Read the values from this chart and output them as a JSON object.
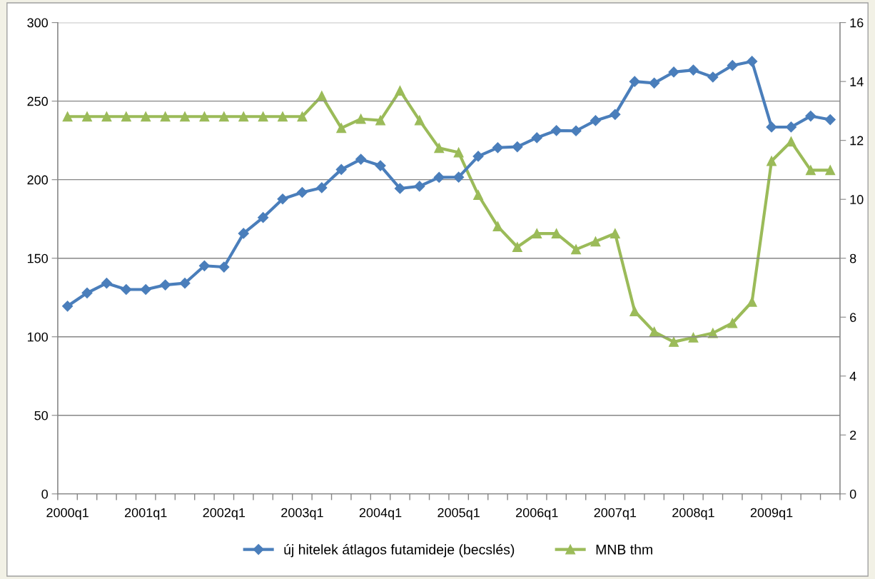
{
  "chart_data": {
    "type": "line",
    "categories": [
      "2000q1",
      null,
      null,
      null,
      "2001q1",
      null,
      null,
      null,
      "2002q1",
      null,
      null,
      null,
      "2003q1",
      null,
      null,
      null,
      "2004q1",
      null,
      null,
      null,
      "2005q1",
      null,
      null,
      null,
      "2006q1",
      null,
      null,
      null,
      "2007q1",
      null,
      null,
      null,
      "2008q1",
      null,
      null,
      null,
      "2009q1",
      null,
      null,
      null
    ],
    "series": [
      {
        "name": "új hitelek átlagos futamideje (becslés)",
        "color": "#4a7ebb",
        "marker": "diamond",
        "values": [
          119.5,
          127.9,
          134.1,
          130.1,
          130.1,
          133,
          134.1,
          145.2,
          144.4,
          165.8,
          175.9,
          187.7,
          191.9,
          194.9,
          206.5,
          213,
          208.9,
          194.4,
          195.8,
          201.5,
          201.6,
          214.9,
          220.4,
          220.9,
          226.7,
          231.3,
          231.1,
          237.6,
          241.5,
          262.5,
          261.5,
          268.5,
          269.8,
          265.3,
          272.7,
          275.3,
          233.5,
          233.5,
          240.5,
          238.2
        ]
      },
      {
        "name": "MNB thm",
        "color": "#9bbb59",
        "marker": "triangle",
        "axis": "y2",
        "values": [
          12.81,
          12.81,
          12.81,
          12.81,
          12.81,
          12.81,
          12.81,
          12.81,
          12.81,
          12.81,
          12.81,
          12.81,
          12.81,
          13.51,
          12.42,
          12.73,
          12.68,
          13.69,
          12.68,
          11.74,
          11.59,
          10.15,
          9.08,
          8.38,
          8.84,
          8.84,
          8.3,
          8.57,
          8.84,
          6.2,
          5.5,
          5.16,
          5.31,
          5.46,
          5.8,
          6.52,
          11.3,
          11.96,
          10.99,
          10.99
        ]
      }
    ],
    "ylim": [
      0,
      300
    ],
    "yticks": [
      0,
      50,
      100,
      150,
      200,
      250,
      300
    ],
    "y2lim": [
      0,
      16
    ],
    "y2ticks": [
      0,
      2,
      4,
      6,
      8,
      10,
      12,
      14,
      16
    ],
    "grid": "y",
    "legend": "bottom",
    "line_style": "solid"
  }
}
